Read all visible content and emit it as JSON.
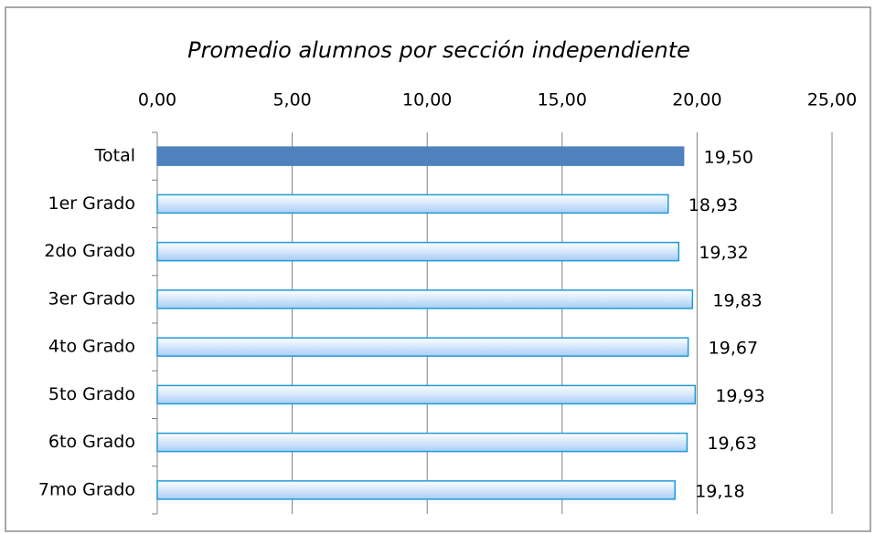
{
  "chart_data": {
    "type": "hbar",
    "title": "Promedio alumnos por sección independiente",
    "categories": [
      "Total",
      "1er Grado",
      "2do Grado",
      "3er Grado",
      "4to Grado",
      "5to Grado",
      "6to Grado",
      "7mo Grado"
    ],
    "values": [
      19.5,
      18.93,
      19.32,
      19.83,
      19.67,
      19.93,
      19.63,
      19.18
    ],
    "value_labels": [
      "19,50",
      "18,93",
      "19,32",
      "19,83",
      "19,67",
      "19,93",
      "19,63",
      "19,18"
    ],
    "colors": [
      "#4f81bd",
      "#a9cdf7",
      "#a9cdf7",
      "#a9cdf7",
      "#a9cdf7",
      "#a9cdf7",
      "#a9cdf7",
      "#a9cdf7"
    ],
    "gradient": [
      false,
      true,
      true,
      true,
      true,
      true,
      true,
      true
    ],
    "edge_color": "#1e9bd7",
    "xlim": [
      0,
      25
    ],
    "xticks": [
      {
        "value": 0,
        "label": "0,00"
      },
      {
        "value": 5,
        "label": "5,00"
      },
      {
        "value": 10,
        "label": "10,00"
      },
      {
        "value": 15,
        "label": "15,00"
      },
      {
        "value": 20,
        "label": "20,00"
      },
      {
        "value": 25,
        "label": "25,00"
      }
    ],
    "grid": true
  }
}
